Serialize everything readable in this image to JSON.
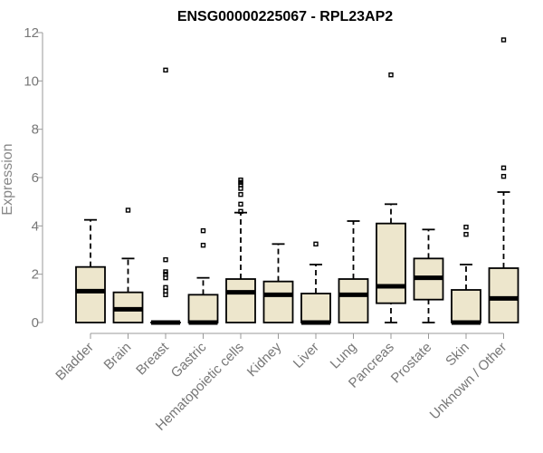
{
  "chart_data": {
    "type": "boxplot",
    "title": "ENSG00000225067 - RPL23AP2",
    "ylabel": "Expression",
    "xlabel": "",
    "ylim": [
      0,
      12
    ],
    "yticks": [
      0,
      2,
      4,
      6,
      8,
      10,
      12
    ],
    "box_fill": "#ede6cc",
    "grid": false,
    "categories": [
      "Bladder",
      "Brain",
      "Breast",
      "Gastric",
      "Hematopoietic cells",
      "Kidney",
      "Liver",
      "Lung",
      "Pancreas",
      "Prostate",
      "Skin",
      "Unknown / Other"
    ],
    "boxes": [
      {
        "category": "Bladder",
        "whisker_low": 0,
        "q1": 0,
        "median": 1.3,
        "q3": 2.3,
        "whisker_high": 4.25,
        "outliers": []
      },
      {
        "category": "Brain",
        "whisker_low": 0,
        "q1": 0,
        "median": 0.55,
        "q3": 1.25,
        "whisker_high": 2.65,
        "outliers": [
          4.65
        ]
      },
      {
        "category": "Breast",
        "whisker_low": 0,
        "q1": 0,
        "median": 0,
        "q3": 0,
        "whisker_high": 0,
        "outliers": [
          1.15,
          1.3,
          1.45,
          1.85,
          2.0,
          2.1,
          2.6,
          10.45
        ]
      },
      {
        "category": "Gastric",
        "whisker_low": 0,
        "q1": 0,
        "median": 0,
        "q3": 1.15,
        "whisker_high": 1.85,
        "outliers": [
          3.2,
          3.8
        ]
      },
      {
        "category": "Hematopoietic cells",
        "whisker_low": 0,
        "q1": 0,
        "median": 1.25,
        "q3": 1.8,
        "whisker_high": 4.55,
        "outliers": [
          4.6,
          4.9,
          5.3,
          5.55,
          5.7,
          5.8,
          5.9
        ]
      },
      {
        "category": "Kidney",
        "whisker_low": 0,
        "q1": 0,
        "median": 1.15,
        "q3": 1.7,
        "whisker_high": 3.25,
        "outliers": []
      },
      {
        "category": "Liver",
        "whisker_low": 0,
        "q1": 0,
        "median": 0,
        "q3": 1.2,
        "whisker_high": 2.4,
        "outliers": [
          3.25
        ]
      },
      {
        "category": "Lung",
        "whisker_low": 0,
        "q1": 0,
        "median": 1.15,
        "q3": 1.8,
        "whisker_high": 4.2,
        "outliers": []
      },
      {
        "category": "Pancreas",
        "whisker_low": 0,
        "q1": 0.8,
        "median": 1.5,
        "q3": 4.1,
        "whisker_high": 4.9,
        "outliers": [
          10.25
        ]
      },
      {
        "category": "Prostate",
        "whisker_low": 0,
        "q1": 0.95,
        "median": 1.85,
        "q3": 2.65,
        "whisker_high": 3.85,
        "outliers": []
      },
      {
        "category": "Skin",
        "whisker_low": 0,
        "q1": 0,
        "median": 0,
        "q3": 1.35,
        "whisker_high": 2.4,
        "outliers": [
          3.65,
          3.95
        ]
      },
      {
        "category": "Unknown / Other",
        "whisker_low": 0,
        "q1": 0,
        "median": 1.0,
        "q3": 2.25,
        "whisker_high": 5.4,
        "outliers": [
          6.05,
          6.4,
          11.7
        ]
      }
    ]
  }
}
